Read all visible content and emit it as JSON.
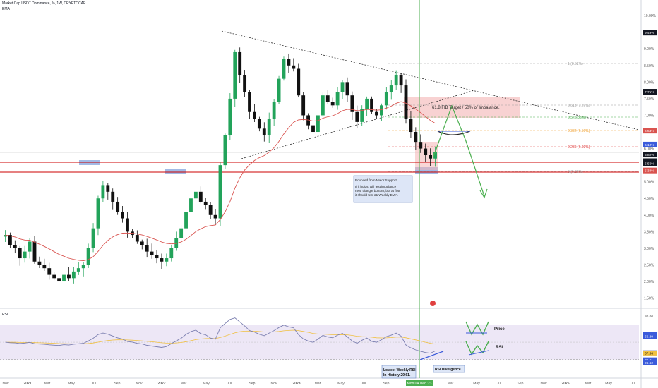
{
  "header": {
    "title": "Market Cap USDT Dominance, %, 1W, CRYPTOCAP",
    "indicator": "EMA"
  },
  "colors": {
    "up": "#22a35a",
    "down": "#111111",
    "ema": "#d9534f",
    "rsi": "#7b7fb0",
    "rsi_ma": "#f0c040",
    "rsi_band": "#ede7f6",
    "support_line": "#cc0000",
    "cursor_line": "#4caf50",
    "highlight_box": "#f4b4b4",
    "support_box": "#8ba9e0",
    "projection": "#4caf50"
  },
  "price_axis": {
    "ticks": [
      "10.00%",
      "9.49%",
      "9.00%",
      "8.50%",
      "8.00%",
      "7.50%",
      "7.00%",
      "6.50%",
      "6.00%",
      "5.50%",
      "5.00%",
      "4.50%",
      "4.00%",
      "3.50%",
      "3.00%",
      "2.50%",
      "2.00%",
      "1.50%"
    ],
    "markers": [
      "9.49%",
      "7.71%",
      "6.54%",
      "6.12%",
      "5.82%",
      "5.62%",
      "5.56%",
      "5.34%"
    ]
  },
  "rsi_axis": {
    "ticks": [
      "80.00",
      "60.89",
      "58.98",
      "56.89",
      "37.74",
      "37.56",
      "29.61",
      "26.62"
    ]
  },
  "time_axis": {
    "labels": [
      "Nov",
      "2021",
      "Mar",
      "May",
      "Jul",
      "Sep",
      "Nov",
      "2022",
      "Mar",
      "May",
      "Jul",
      "Sep",
      "Nov",
      "2023",
      "Mar",
      "May",
      "Jul",
      "Sep",
      "Mon 04 Dec '23",
      "Mar",
      "May",
      "Jul",
      "Sep",
      "Nov",
      "2025",
      "Mar",
      "May",
      "Jul"
    ]
  },
  "fib": [
    {
      "label": "1 (8.52%)",
      "color": "#9e9e9e"
    },
    {
      "label": "0.618 (7.27%)",
      "color": "#9e9e9e"
    },
    {
      "label": "0.5 (6.88%)",
      "color": "#4caf50"
    },
    {
      "label": "0.382 (6.50%)",
      "color": "#f0a030"
    },
    {
      "label": "0.236 (6.02%)",
      "color": "#e04040"
    },
    {
      "label": "0 (5.28%)",
      "color": "#9e9e9e"
    }
  ],
  "annotations": {
    "target": "61.8 FIB Target / 50% of Imbalance.",
    "note_line1": "Bounced from Major Support.",
    "note_line2": "If it holds, will test imbalance near triangle bottom, but at first it should test 21 Weekly EMA.",
    "rsi_low": "Lowest Weekly RSI In History 29.61.",
    "rsi_div": "RSI Divergence.",
    "legend_price": "Price",
    "legend_rsi": "RSI",
    "rsi_title": "RSI"
  },
  "chart_data": {
    "type": "candlestick",
    "title": "Market Cap USDT Dominance, %, 1W, CRYPTOCAP",
    "indicator": "EMA 21",
    "ylim": [
      1.3,
      10.3
    ],
    "scale": "linear",
    "close_series_approx": [
      3.4,
      3.1,
      3.0,
      2.7,
      2.9,
      3.2,
      2.6,
      2.5,
      2.4,
      2.2,
      2.1,
      2.0,
      2.2,
      2.1,
      2.3,
      2.4,
      2.5,
      3.0,
      3.6,
      4.5,
      4.9,
      4.7,
      4.4,
      4.1,
      3.9,
      3.5,
      3.4,
      3.2,
      3.1,
      2.9,
      2.8,
      2.7,
      2.6,
      2.7,
      3.0,
      3.3,
      3.6,
      4.1,
      4.5,
      4.7,
      4.4,
      4.3,
      4.0,
      3.9,
      5.5,
      6.4,
      7.5,
      8.9,
      8.2,
      7.7,
      7.1,
      6.9,
      6.6,
      6.4,
      6.9,
      7.4,
      8.1,
      8.7,
      8.5,
      8.4,
      7.6,
      7.0,
      6.7,
      6.5,
      7.0,
      7.6,
      7.4,
      7.3,
      7.7,
      8.0,
      7.6,
      7.1,
      6.8,
      7.2,
      7.5,
      7.1,
      7.0,
      7.3,
      7.7,
      7.9,
      8.2,
      7.9,
      6.9,
      6.5,
      6.2,
      6.0,
      5.8,
      5.7,
      5.9
    ],
    "last_values": {
      "price": "5.82%",
      "ema": "6.54%",
      "rsi": "37.56"
    },
    "rsi": {
      "ylim": [
        20,
        85
      ],
      "band": [
        30,
        70
      ],
      "low": 29.61
    }
  }
}
